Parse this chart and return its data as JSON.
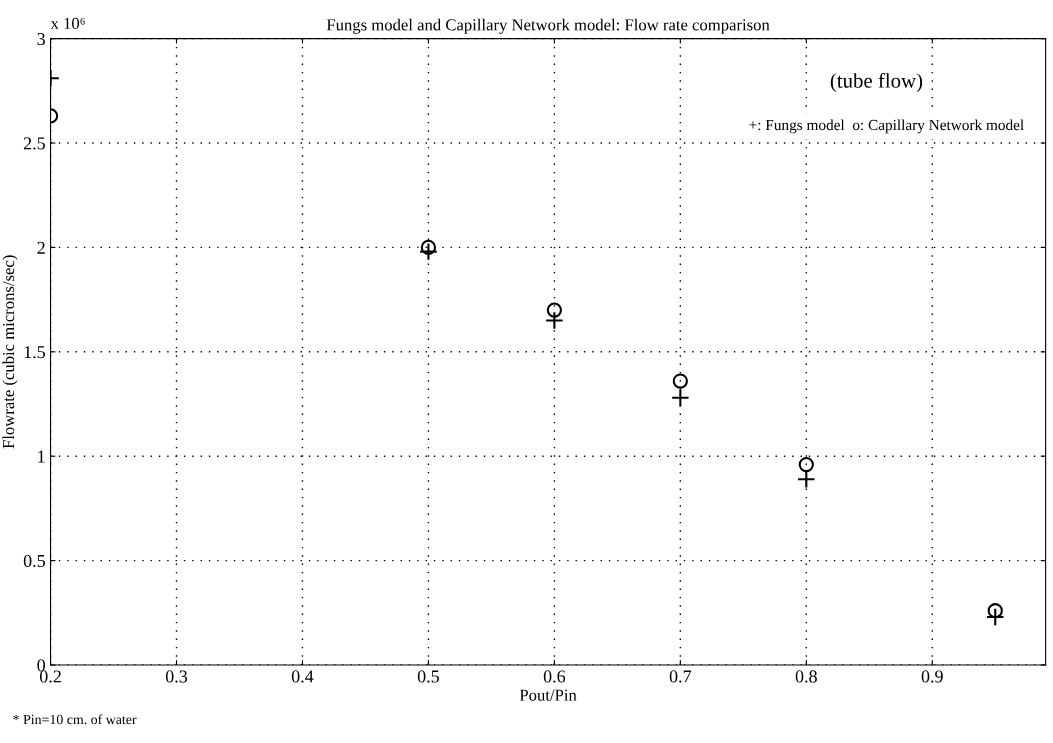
{
  "chart_data": {
    "type": "scatter",
    "title": "Fungs model and Capillary Network model: Flow rate comparison",
    "xlabel": "Pout/Pin",
    "ylabel": "Flowrate (cubic microns/sec)",
    "x": [
      0.2,
      0.5,
      0.6,
      0.7,
      0.8,
      0.95
    ],
    "series": [
      {
        "color": "#000000",
        "marker": "cross",
        "values": [
          2.81,
          1.98,
          1.65,
          1.28,
          0.89,
          0.23
        ]
      },
      {
        "color": "#000000",
        "marker": "circle",
        "values": [
          2.63,
          2.0,
          1.7,
          1.36,
          0.96,
          0.26
        ]
      }
    ],
    "xlim": [
      0.2,
      0.99
    ],
    "xticks": [
      0.2,
      0.3,
      0.4,
      0.5,
      0.6,
      0.7,
      0.8,
      0.9
    ],
    "ylim": [
      0,
      3
    ],
    "yticks": [
      0,
      0.5,
      1,
      1.5,
      2,
      2.5,
      3
    ],
    "grid": true,
    "line_style": "dotted",
    "annotations": [
      "x 10⁶",
      "(tube flow)",
      "+: Fungs model  o: Capillary Network model",
      "* Pin=10 cm. of water"
    ]
  }
}
